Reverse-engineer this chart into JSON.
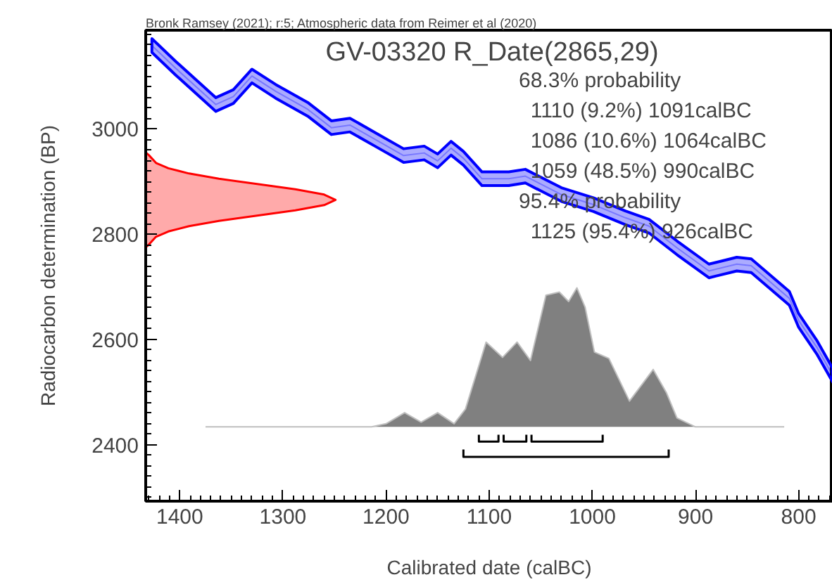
{
  "chart_data": {
    "type": "line",
    "title": "GV-03320 R_Date(2865,29)",
    "subtitle": "Bronk Ramsey (2021); r:5; Atmospheric data from Reimer et al (2020)",
    "xlabel": "Calibrated date (calBC)",
    "ylabel": "Radiocarbon determination (BP)",
    "annotations": [
      "68.3% probability",
      "  1110 (9.2%) 1091calBC",
      "  1086 (10.6%) 1064calBC",
      "  1059 (48.5%) 990calBC",
      "95.4% probability",
      "  1125 (95.4%) 926calBC"
    ],
    "xlim": [
      1433,
      767
    ],
    "ylim": [
      2293,
      3187
    ],
    "xticks": [
      1400,
      1300,
      1200,
      1100,
      1000,
      900,
      800
    ],
    "yticks": [
      2400,
      2600,
      2800,
      3000
    ],
    "grid": false,
    "series": [
      {
        "color": "#0000ff",
        "x": [
          1427,
          1404,
          1365,
          1348,
          1330,
          1307,
          1276,
          1253,
          1235,
          1209,
          1183,
          1163,
          1150,
          1137,
          1125,
          1107,
          1081,
          1065,
          1050,
          1030,
          999,
          968,
          945,
          918,
          887,
          860,
          846,
          809,
          800,
          782,
          767
        ],
        "values": [
          3158,
          3115,
          3046,
          3061,
          3100,
          3071,
          3037,
          3002,
          3007,
          2978,
          2949,
          2954,
          2939,
          2963,
          2944,
          2905,
          2905,
          2910,
          2895,
          2875,
          2856,
          2831,
          2815,
          2774,
          2730,
          2743,
          2740,
          2678,
          2636,
          2584,
          2532
        ],
        "lower": [
          3145,
          3102,
          3033,
          3048,
          3087,
          3058,
          3024,
          2989,
          2994,
          2965,
          2936,
          2941,
          2926,
          2950,
          2931,
          2892,
          2892,
          2897,
          2882,
          2862,
          2843,
          2818,
          2802,
          2761,
          2717,
          2730,
          2727,
          2665,
          2623,
          2571,
          2519
        ],
        "upper": [
          3171,
          3128,
          3059,
          3074,
          3113,
          3084,
          3050,
          3015,
          3020,
          2991,
          2962,
          2967,
          2952,
          2976,
          2957,
          2918,
          2918,
          2923,
          2908,
          2888,
          2869,
          2844,
          2828,
          2787,
          2743,
          2756,
          2753,
          2691,
          2649,
          2597,
          2545
        ]
      },
      {
        "type": "area",
        "color": "#ff0000",
        "x": [
          1433,
          1430,
          1423,
          1411,
          1391,
          1362,
          1325,
          1288,
          1260,
          1249,
          1260,
          1288,
          1325,
          1362,
          1391,
          1411,
          1423,
          1430,
          1433
        ],
        "values": [
          2775,
          2780,
          2795,
          2805,
          2815,
          2825,
          2835,
          2845,
          2855,
          2865,
          2875,
          2885,
          2895,
          2905,
          2915,
          2925,
          2935,
          2950,
          2955
        ]
      },
      {
        "type": "area",
        "color": "#808080",
        "x": [
          1375,
          1214,
          1200,
          1182,
          1166,
          1150,
          1134,
          1123,
          1103,
          1087,
          1073,
          1060,
          1045,
          1032,
          1023,
          1015,
          1007,
          998,
          984,
          964,
          941,
          928,
          918,
          900,
          814
        ],
        "values": [
          2434,
          2434,
          2440,
          2461,
          2443,
          2461,
          2440,
          2468,
          2595,
          2566,
          2595,
          2560,
          2684,
          2690,
          2672,
          2698,
          2661,
          2576,
          2564,
          2483,
          2543,
          2498,
          2451,
          2434,
          2434
        ]
      },
      {
        "color": "#000000",
        "x": [
          1110,
          1110,
          1091,
          1091
        ],
        "values": [
          2419,
          2406,
          2406,
          2419
        ]
      },
      {
        "color": "#000000",
        "x": [
          1086,
          1086,
          1064,
          1064
        ],
        "values": [
          2419,
          2406,
          2406,
          2419
        ]
      },
      {
        "color": "#000000",
        "x": [
          1059,
          1059,
          990,
          990
        ],
        "values": [
          2419,
          2406,
          2406,
          2419
        ]
      },
      {
        "color": "#000000",
        "x": [
          1125,
          1125,
          926,
          926
        ],
        "values": [
          2391,
          2377,
          2377,
          2391
        ]
      }
    ]
  }
}
